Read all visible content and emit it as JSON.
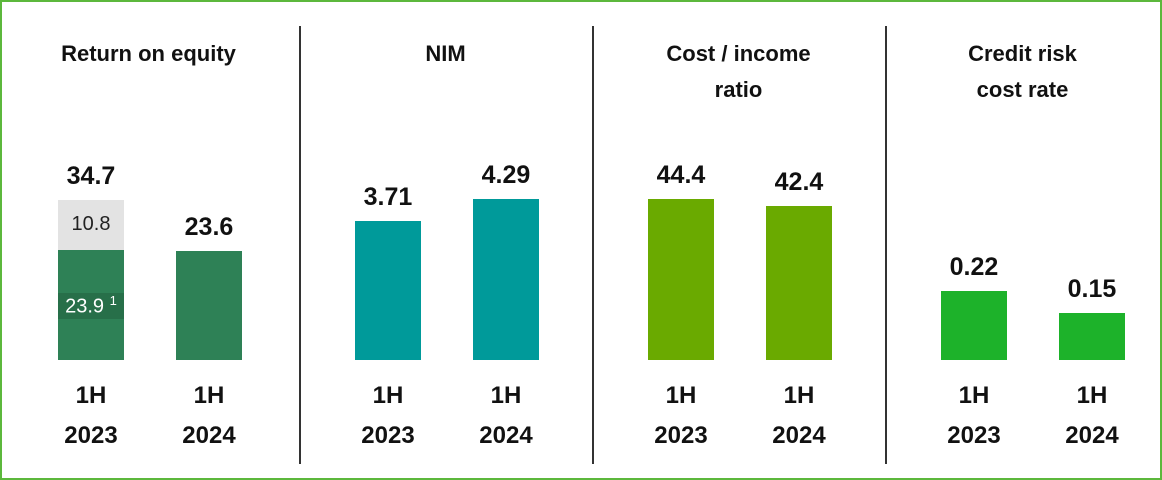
{
  "chart_data": [
    {
      "type": "stacked-bar",
      "title": "Return on equity",
      "categories": [
        "1H 2023",
        "1H 2024"
      ],
      "series": [
        {
          "color": "#2e8156",
          "values": [
            23.9,
            23.6
          ],
          "footnote": "1"
        },
        {
          "color": "#e3e3e3",
          "values": [
            10.8,
            null
          ]
        }
      ],
      "totals": [
        34.7,
        23.6
      ],
      "ylim": [
        0,
        43.5
      ]
    },
    {
      "type": "bar",
      "title": "NIM",
      "categories": [
        "1H 2023",
        "1H 2024"
      ],
      "series": [
        {
          "color": "#009a9a",
          "values": [
            3.71,
            4.29
          ]
        }
      ],
      "ylim": [
        0,
        5.33
      ]
    },
    {
      "type": "bar",
      "title": "Cost / income ratio",
      "categories": [
        "1H 2023",
        "1H 2024"
      ],
      "series": [
        {
          "color": "#6aaa00",
          "values": [
            44.4,
            42.4
          ]
        }
      ],
      "ylim": [
        0,
        55.2
      ]
    },
    {
      "type": "bar",
      "title": "Credit risk cost rate",
      "categories": [
        "1H 2023",
        "1H 2024"
      ],
      "series": [
        {
          "color": "#1db22a",
          "values": [
            0.22,
            0.15
          ]
        }
      ],
      "ylim": [
        0,
        0.64
      ]
    }
  ]
}
